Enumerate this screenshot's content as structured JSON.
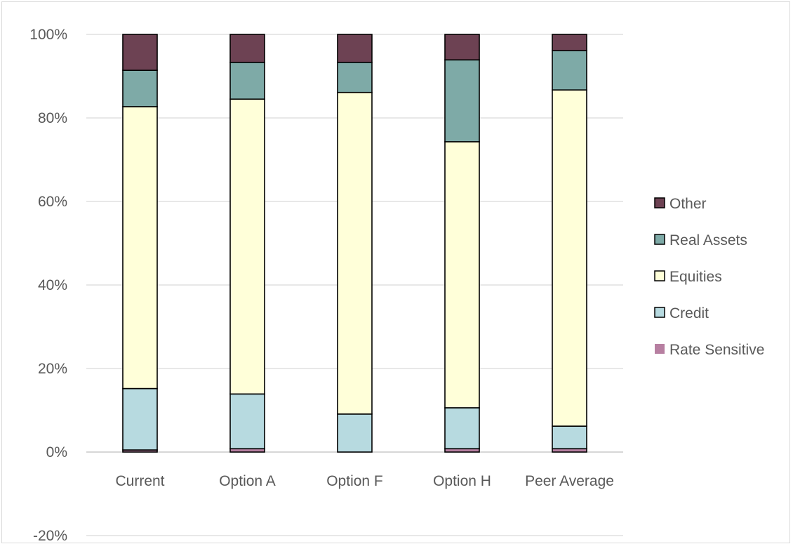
{
  "chart_data": {
    "type": "bar",
    "stacked": true,
    "categories": [
      "Current",
      "Option A",
      "Option F",
      "Option H",
      "Peer Average"
    ],
    "series": [
      {
        "name": "Rate Sensitive",
        "color": "#b77fa1",
        "values": [
          0.5,
          0.8,
          0.0,
          0.8,
          0.8
        ]
      },
      {
        "name": "Credit",
        "color": "#b7dae0",
        "values": [
          14.7,
          13.1,
          9.1,
          9.8,
          5.4
        ]
      },
      {
        "name": "Equities",
        "color": "#ffffd9",
        "values": [
          67.5,
          70.6,
          77.0,
          63.7,
          80.5
        ]
      },
      {
        "name": "Real Assets",
        "color": "#7eaaa7",
        "values": [
          8.7,
          8.8,
          7.2,
          19.6,
          9.4
        ]
      },
      {
        "name": "Other",
        "color": "#6d4253",
        "values": [
          8.6,
          6.7,
          6.7,
          6.1,
          3.9
        ]
      }
    ],
    "yticks": [
      "100%",
      "80%",
      "60%",
      "40%",
      "20%",
      "0%",
      "-20%"
    ],
    "ylim": [
      -20,
      100
    ],
    "grid": true,
    "legend_position": "right",
    "title": "",
    "xlabel": "",
    "ylabel": ""
  }
}
